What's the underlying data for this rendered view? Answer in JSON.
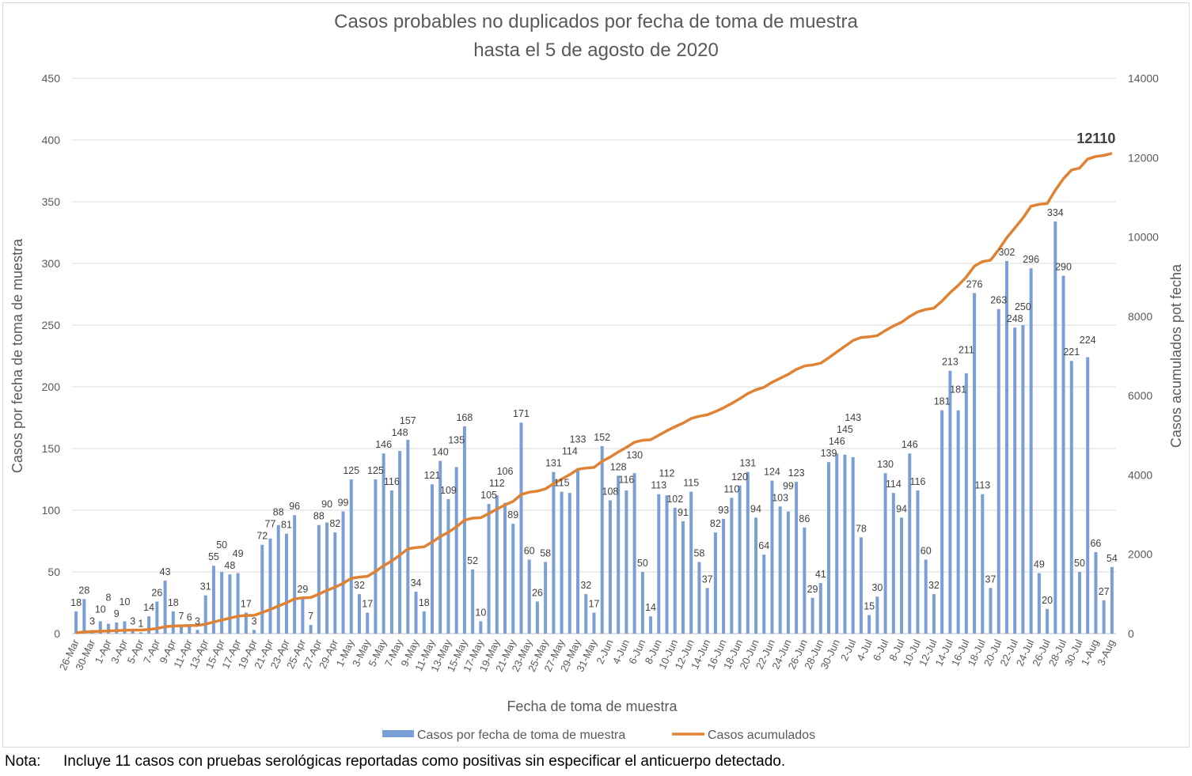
{
  "chart_data": {
    "type": "bar+line",
    "title_line1": "Casos probables no duplicados por fecha de toma de muestra",
    "title_line2": "hasta el 5 de agosto de 2020",
    "xlabel": "Fecha de toma de muestra",
    "ylabel": "Casos por fecha de toma de muestra",
    "y2label": "Casos acumulados pot fecha",
    "ylim": [
      0,
      450
    ],
    "yticks": [
      0,
      50,
      100,
      150,
      200,
      250,
      300,
      350,
      400,
      450
    ],
    "y2lim": [
      0,
      14000
    ],
    "y2ticks": [
      0,
      2000,
      4000,
      6000,
      8000,
      10000,
      12000,
      14000
    ],
    "grid": true,
    "legend_position": "bottom",
    "tick_labels_every_other_category": [
      "26-Mar",
      "30-Mar",
      "1-Apr",
      "3-Apr",
      "5-Apr",
      "7-Apr",
      "9-Apr",
      "11-Apr",
      "13-Apr",
      "15-Apr",
      "17-Apr",
      "19-Apr",
      "21-Apr",
      "23-Apr",
      "25-Apr",
      "27-Apr",
      "29-Apr",
      "1-May",
      "3-May",
      "5-May",
      "7-May",
      "9-May",
      "11-May",
      "13-May",
      "15-May",
      "17-May",
      "19-May",
      "21-May",
      "23-May",
      "25-May",
      "27-May",
      "29-May",
      "31-May",
      "2-Jun",
      "4-Jun",
      "6-Jun",
      "8-Jun",
      "10-Jun",
      "12-Jun",
      "14-Jun",
      "16-Jun",
      "18-Jun",
      "20-Jun",
      "22-Jun",
      "24-Jun",
      "26-Jun",
      "28-Jun",
      "30-Jun",
      "2-Jul",
      "4-Jul",
      "6-Jul",
      "8-Jul",
      "10-Jul",
      "12-Jul",
      "14-Jul",
      "16-Jul",
      "18-Jul",
      "20-Jul",
      "22-Jul",
      "24-Jul",
      "26-Jul",
      "28-Jul",
      "30-Jul",
      "1-Aug",
      "3-Aug"
    ],
    "series": [
      {
        "name": "Casos por fecha de toma de muestra",
        "type": "bar",
        "axis": "left",
        "color": "#7A9FD6",
        "values": [
          18,
          28,
          3,
          10,
          8,
          9,
          10,
          3,
          1,
          14,
          26,
          43,
          18,
          7,
          6,
          3,
          31,
          55,
          50,
          48,
          49,
          17,
          3,
          72,
          77,
          88,
          81,
          96,
          29,
          7,
          88,
          90,
          82,
          99,
          125,
          32,
          17,
          125,
          146,
          116,
          148,
          157,
          34,
          18,
          121,
          140,
          109,
          135,
          168,
          52,
          10,
          105,
          112,
          106,
          89,
          171,
          60,
          26,
          58,
          131,
          115,
          114,
          133,
          32,
          17,
          152,
          108,
          128,
          116,
          130,
          50,
          14,
          113,
          112,
          102,
          91,
          115,
          58,
          37,
          82,
          93,
          110,
          120,
          131,
          94,
          64,
          124,
          103,
          99,
          123,
          86,
          29,
          41,
          139,
          146,
          145,
          143,
          78,
          15,
          30,
          130,
          114,
          94,
          146,
          116,
          60,
          32,
          181,
          213,
          181,
          211,
          276,
          113,
          37,
          263,
          302,
          248,
          250,
          296,
          49,
          20,
          334,
          290,
          221,
          50,
          224,
          66,
          27,
          54
        ]
      },
      {
        "name": "Casos acumulados",
        "type": "line",
        "axis": "right",
        "color": "#DF8233",
        "values": "running total of bar series",
        "final_label": "12110"
      }
    ]
  },
  "note": {
    "label": "Nota:",
    "text": "Incluye 11 casos con pruebas serológicas reportadas como positivas sin especificar el anticuerpo detectado."
  }
}
